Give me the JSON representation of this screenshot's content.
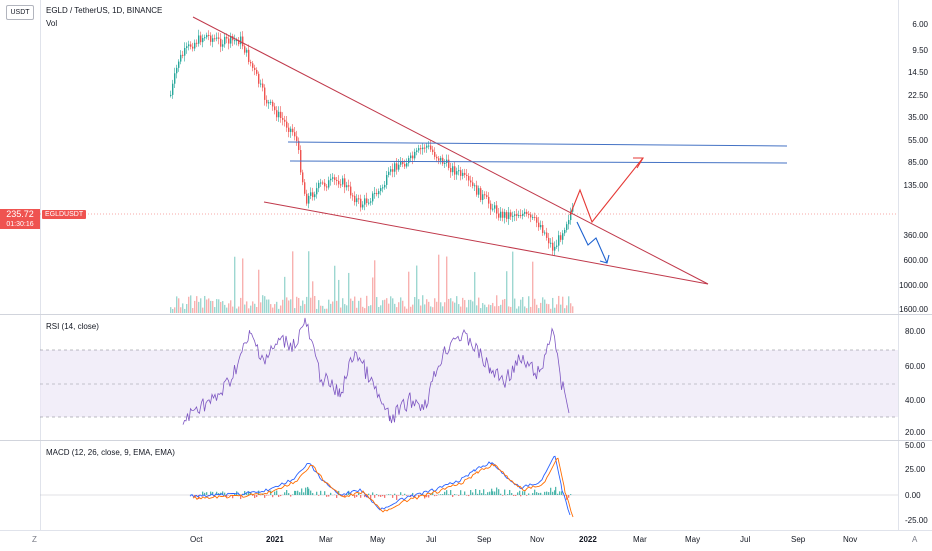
{
  "header": {
    "symbol_line": "EGLD / TetherUS, 1D, BINANCE",
    "volume_label": "Vol",
    "currency_button": "USDT"
  },
  "price_scale": {
    "ticks": [
      "6.00",
      "9.50",
      "14.50",
      "22.50",
      "35.00",
      "55.00",
      "85.00",
      "135.00",
      "360.00",
      "600.00",
      "1000.00",
      "1600.00"
    ],
    "last_price": "235.72",
    "countdown": "01:30:16",
    "symbol_badge": "EGLDUSDT",
    "badge_color": "#ef5350"
  },
  "rsi_pane": {
    "title": "RSI (14, close)",
    "ticks": [
      "80.00",
      "60.00",
      "40.00",
      "20.00"
    ],
    "line_color": "#7e57c2",
    "band_color": "#ede7f6"
  },
  "macd_pane": {
    "title": "MACD (12, 26, close, 9, EMA, EMA)",
    "ticks": [
      "50.00",
      "25.00",
      "0.00",
      "-25.00"
    ],
    "macd_color": "#2962ff",
    "signal_color": "#ff6d00"
  },
  "time_axis": {
    "labels": [
      "Oct",
      "2021",
      "Mar",
      "May",
      "Jul",
      "Sep",
      "Nov",
      "2022",
      "Mar",
      "May",
      "Jul",
      "Sep",
      "Nov"
    ]
  },
  "corner": {
    "left_button": "Z",
    "right_button": "A"
  },
  "drawings": {
    "trend_color": "#c0394b",
    "level_color": "#4472c4",
    "bull_arrow_color": "#e53935",
    "bear_arrow_color": "#1e62d0"
  }
}
